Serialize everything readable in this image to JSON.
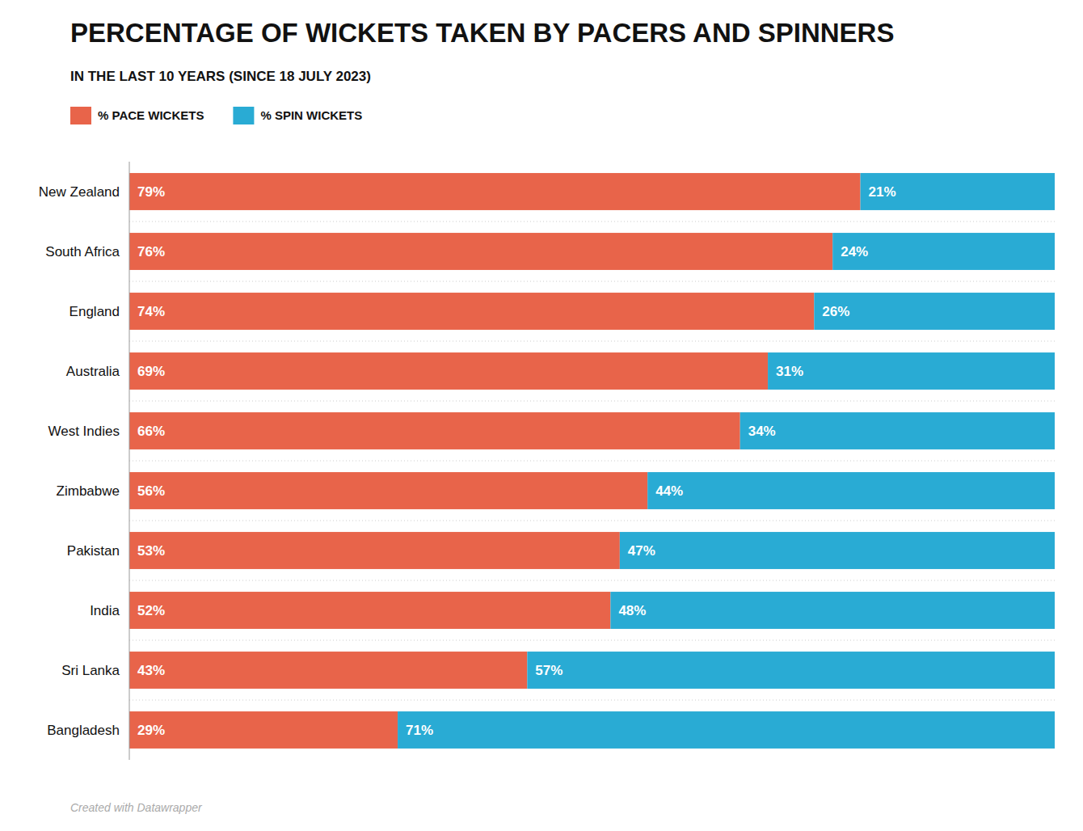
{
  "chart_data": {
    "type": "bar",
    "orientation": "horizontal",
    "stacked": true,
    "title": "PERCENTAGE OF WICKETS TAKEN BY PACERS AND SPINNERS",
    "subtitle": "IN THE LAST 10 YEARS (SINCE 18 JULY 2023)",
    "annotations": [
      "Created with Datawrapper"
    ],
    "categories": [
      "New Zealand",
      "South Africa",
      "England",
      "Australia",
      "West Indies",
      "Zimbabwe",
      "Pakistan",
      "India",
      "Sri Lanka",
      "Bangladesh"
    ],
    "series": [
      {
        "name": "% PACE WICKETS",
        "color": "#E8644A",
        "values": [
          79,
          76,
          74,
          69,
          66,
          56,
          53,
          52,
          43,
          29
        ],
        "value_labels": [
          "79%",
          "76%",
          "74%",
          "69%",
          "66%",
          "56%",
          "53%",
          "52%",
          "43%",
          "29%"
        ]
      },
      {
        "name": "% SPIN WICKETS",
        "color": "#29ABD4",
        "values": [
          21,
          24,
          26,
          31,
          34,
          44,
          47,
          48,
          57,
          71
        ],
        "value_labels": [
          "21%",
          "24%",
          "26%",
          "31%",
          "34%",
          "44%",
          "47%",
          "48%",
          "57%",
          "71%"
        ]
      }
    ],
    "xlim": [
      0,
      100
    ],
    "data_labels": true,
    "tick_labels": "y",
    "grid": false,
    "legend": "upper left"
  }
}
